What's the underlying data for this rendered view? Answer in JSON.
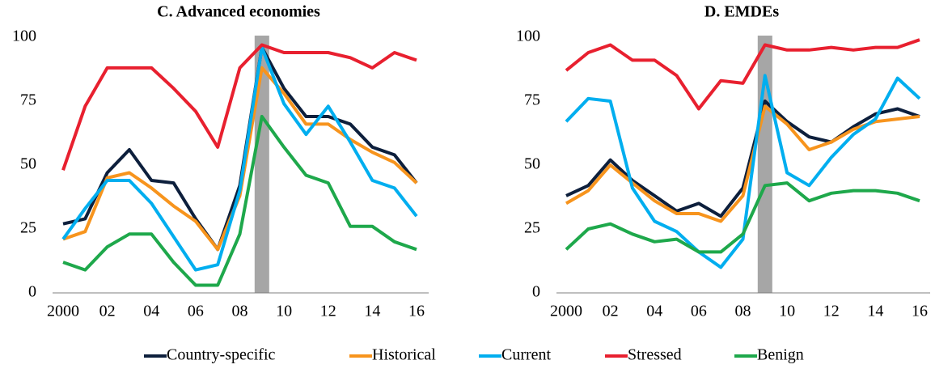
{
  "chart_data": [
    {
      "type": "line",
      "title": "C. Advanced economies",
      "categories": [
        "2000",
        null,
        "02",
        null,
        "04",
        null,
        "06",
        null,
        "08",
        null,
        "10",
        null,
        "12",
        null,
        "14",
        null,
        "16"
      ],
      "ylim": [
        0,
        100
      ],
      "yticks": [
        0,
        25,
        50,
        75,
        100
      ],
      "highlight_index": 9,
      "series": [
        {
          "name": "Country-specific",
          "color": "#0d1f3c",
          "values": [
            27,
            29,
            47,
            56,
            44,
            43,
            29,
            17,
            42,
            96,
            80,
            69,
            69,
            66,
            57,
            54,
            43
          ]
        },
        {
          "name": "Historical",
          "color": "#f7941d",
          "values": [
            21,
            24,
            45,
            47,
            41,
            34,
            28,
            17,
            38,
            88,
            78,
            66,
            66,
            60,
            55,
            51,
            43
          ]
        },
        {
          "name": "Current",
          "color": "#00aeef",
          "values": [
            21,
            33,
            44,
            44,
            35,
            22,
            9,
            11,
            40,
            96,
            74,
            62,
            73,
            59,
            44,
            41,
            30
          ]
        },
        {
          "name": "Stressed",
          "color": "#e8202f",
          "values": [
            48,
            73,
            88,
            88,
            88,
            80,
            71,
            57,
            88,
            97,
            94,
            94,
            94,
            92,
            88,
            94,
            91
          ]
        },
        {
          "name": "Benign",
          "color": "#1ea84b",
          "values": [
            12,
            9,
            18,
            23,
            23,
            12,
            3,
            3,
            23,
            69,
            57,
            46,
            43,
            26,
            26,
            20,
            17
          ]
        }
      ]
    },
    {
      "type": "line",
      "title": "D. EMDEs",
      "categories": [
        "2000",
        null,
        "02",
        null,
        "04",
        null,
        "06",
        null,
        "08",
        null,
        "10",
        null,
        "12",
        null,
        "14",
        null,
        "16"
      ],
      "ylim": [
        0,
        100
      ],
      "yticks": [
        0,
        25,
        50,
        75,
        100
      ],
      "highlight_index": 9,
      "series": [
        {
          "name": "Country-specific",
          "color": "#0d1f3c",
          "values": [
            38,
            42,
            52,
            44,
            38,
            32,
            35,
            30,
            41,
            75,
            67,
            61,
            59,
            65,
            70,
            72,
            69
          ]
        },
        {
          "name": "Historical",
          "color": "#f7941d",
          "values": [
            35,
            40,
            50,
            43,
            36,
            31,
            31,
            28,
            38,
            73,
            66,
            56,
            59,
            64,
            67,
            68,
            69
          ]
        },
        {
          "name": "Current",
          "color": "#00aeef",
          "values": [
            67,
            76,
            75,
            41,
            28,
            24,
            16,
            10,
            21,
            85,
            47,
            42,
            53,
            62,
            68,
            84,
            76
          ]
        },
        {
          "name": "Stressed",
          "color": "#e8202f",
          "values": [
            87,
            94,
            97,
            91,
            91,
            85,
            72,
            83,
            82,
            97,
            95,
            95,
            96,
            95,
            96,
            96,
            99
          ]
        },
        {
          "name": "Benign",
          "color": "#1ea84b",
          "values": [
            17,
            25,
            27,
            23,
            20,
            21,
            16,
            16,
            23,
            42,
            43,
            36,
            39,
            40,
            40,
            39,
            36
          ]
        }
      ]
    }
  ]
}
